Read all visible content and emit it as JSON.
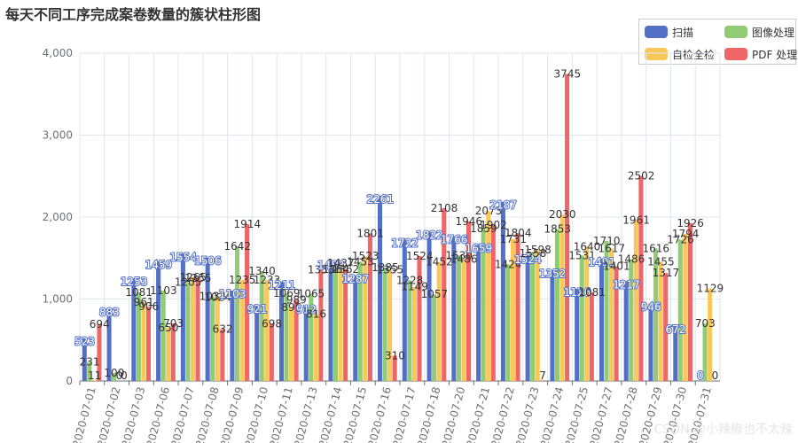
{
  "chart_data": {
    "type": "bar",
    "title": "每天不同工序完成案卷数量的簇状柱形图",
    "xlabel": "",
    "ylabel": "",
    "ylim": [
      0,
      4000
    ],
    "yticks": [
      "0",
      "1,000",
      "2,000",
      "3,000",
      "4,000"
    ],
    "yticks_values": [
      0,
      1000,
      2000,
      3000,
      4000
    ],
    "grid": true,
    "legend_position": "top-right",
    "categories": [
      "2020-07-01",
      "2020-07-02",
      "2020-07-03",
      "2020-07-06",
      "2020-07-07",
      "2020-07-08",
      "2020-07-09",
      "2020-07-10",
      "2020-07-11",
      "2020-07-13",
      "2020-07-14",
      "2020-07-15",
      "2020-07-16",
      "2020-07-17",
      "2020-07-18",
      "2020-07-20",
      "2020-07-21",
      "2020-07-22",
      "2020-07-23",
      "2020-07-24",
      "2020-07-25",
      "2020-07-27",
      "2020-07-28",
      "2020-07-29",
      "2020-07-30",
      "2020-07-31"
    ],
    "series": [
      {
        "name": "扫描",
        "color": "#5470c6",
        "values": [
          523,
          883,
          1253,
          1459,
          1554,
          1506,
          1103,
          921,
          1211,
          912,
          1453,
          1287,
          2261,
          1722,
          1822,
          1766,
          1659,
          2187,
          1524,
          1352,
          1126,
          1491,
          1217,
          946,
          672,
          0
        ]
      },
      {
        "name": "图像处理",
        "color": "#91cc75",
        "values": [
          231,
          100,
          1081,
          1103,
          1205,
          1034,
          1642,
          1340,
          1069,
          1065,
          1364,
          1453,
          1385,
          1228,
          1057,
          1530,
          1859,
          1424,
          1558,
          1853,
          1531,
          1710,
          1486,
          1616,
          1726,
          703
        ]
      },
      {
        "name": "自检全检",
        "color": "#fac858",
        "values": [
          11,
          0,
          961,
          650,
          1265,
          1024,
          1235,
          1233,
          896,
          816,
          1437,
          1523,
          1355,
          1149,
          1452,
          1486,
          2073,
          1731,
          1598,
          2030,
          1640,
          1617,
          1961,
          1455,
          1794,
          1129
        ]
      },
      {
        "name": "PDF 处理",
        "color": "#ee6666",
        "values": [
          694,
          0,
          906,
          703,
          1255,
          632,
          1914,
          698,
          989,
          1355,
          1362,
          1801,
          310,
          1524,
          2108,
          1946,
          1902,
          1804,
          7,
          3745,
          1081,
          1401,
          2502,
          1317,
          1926,
          0
        ]
      }
    ]
  },
  "watermark": "CSDN @小辣椒也不太辣"
}
